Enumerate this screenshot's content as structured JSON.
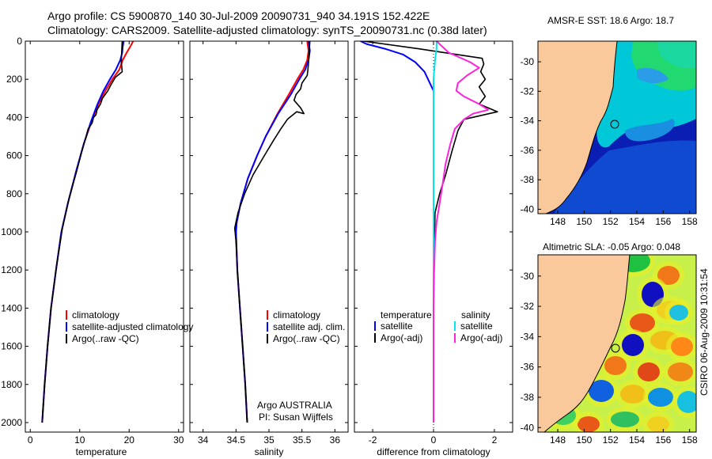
{
  "figure": {
    "title_line1": "Argo profile: CS 5900870_140 30-Jul-2009 20090731_940 34.191S 152.422E",
    "title_line2": "Climatology: CARS2009. Satellite-adjusted climatology: synTS_20090731.nc (0.38d later)",
    "stamp": "CSIRO 06-Aug-2009 10:31:54",
    "credit_line1": "Argo AUSTRALIA",
    "credit_line2": "PI: Susan Wijffels"
  },
  "colors": {
    "climatology": "#ff0000",
    "satellite": "#0000ff",
    "argo": "#000000",
    "sal_satellite": "#00e5ee",
    "sal_argo": "#ff22dd",
    "land": "#f9c89b"
  },
  "chart_data": [
    {
      "type": "line",
      "xlabel": "temperature",
      "ylabel": "",
      "xlim": [
        -1,
        31
      ],
      "ylim": [
        2050,
        0
      ],
      "xticks": [
        "0",
        "10",
        "20",
        "30"
      ],
      "yticks": [
        "0",
        "200",
        "400",
        "600",
        "800",
        "1000",
        "1200",
        "1400",
        "1600",
        "1800",
        "2000"
      ],
      "legend": [
        "climatology",
        "satellite-adjusted climatology",
        "Argo(..raw -QC)"
      ],
      "series": [
        {
          "name": "climatology",
          "color": "#ff0000",
          "points": [
            [
              20.8,
              0
            ],
            [
              20.2,
              30
            ],
            [
              19.5,
              60
            ],
            [
              18.7,
              100
            ],
            [
              18,
              150
            ],
            [
              16.6,
              200
            ],
            [
              15.2,
              260
            ],
            [
              13.8,
              330
            ],
            [
              12.4,
              420
            ],
            [
              10.8,
              540
            ],
            [
              9.3,
              680
            ],
            [
              7.6,
              850
            ],
            [
              6.3,
              1000
            ],
            [
              5.2,
              1200
            ],
            [
              4.2,
              1400
            ],
            [
              3.5,
              1600
            ],
            [
              2.9,
              1800
            ],
            [
              2.4,
              2000
            ]
          ]
        },
        {
          "name": "satellite-adjusted climatology",
          "color": "#0000ff",
          "points": [
            [
              18.9,
              0
            ],
            [
              18.7,
              30
            ],
            [
              18.6,
              60
            ],
            [
              18.2,
              100
            ],
            [
              17.3,
              150
            ],
            [
              16.1,
              200
            ],
            [
              14.8,
              260
            ],
            [
              13.6,
              330
            ],
            [
              12.3,
              420
            ],
            [
              10.8,
              540
            ],
            [
              9.3,
              680
            ],
            [
              7.6,
              850
            ],
            [
              6.3,
              1000
            ],
            [
              5.2,
              1200
            ],
            [
              4.2,
              1400
            ],
            [
              3.5,
              1600
            ],
            [
              2.9,
              1800
            ],
            [
              2.4,
              2000
            ]
          ]
        },
        {
          "name": "Argo(..raw -QC)",
          "color": "#000000",
          "points": [
            [
              18.6,
              0
            ],
            [
              18.5,
              50
            ],
            [
              18.4,
              110
            ],
            [
              18.6,
              160
            ],
            [
              17.2,
              190
            ],
            [
              16.3,
              230
            ],
            [
              15.7,
              260
            ],
            [
              14.6,
              300
            ],
            [
              14.2,
              330
            ],
            [
              13.5,
              360
            ],
            [
              13.3,
              385
            ],
            [
              12.8,
              400
            ],
            [
              12.5,
              430
            ],
            [
              11.7,
              460
            ],
            [
              11.3,
              500
            ],
            [
              10.4,
              580
            ],
            [
              9.4,
              680
            ],
            [
              7.9,
              820
            ],
            [
              6.5,
              980
            ],
            [
              5.3,
              1180
            ],
            [
              4.2,
              1400
            ],
            [
              3.5,
              1600
            ],
            [
              2.9,
              1800
            ],
            [
              2.4,
              2000
            ]
          ]
        }
      ]
    },
    {
      "type": "line",
      "xlabel": "salinity",
      "xlim": [
        33.8,
        36.2
      ],
      "ylim": [
        2050,
        0
      ],
      "xticks": [
        "34",
        "34.5",
        "35",
        "35.5",
        "36"
      ],
      "legend": [
        "climatology",
        "satellite adj. clim.",
        "Argo(..raw -QC)"
      ],
      "series": [
        {
          "name": "climatology",
          "color": "#ff0000",
          "points": [
            [
              35.58,
              0
            ],
            [
              35.6,
              50
            ],
            [
              35.58,
              100
            ],
            [
              35.52,
              150
            ],
            [
              35.43,
              200
            ],
            [
              35.3,
              280
            ],
            [
              35.13,
              380
            ],
            [
              34.95,
              500
            ],
            [
              34.82,
              600
            ],
            [
              34.68,
              720
            ],
            [
              34.57,
              850
            ],
            [
              34.51,
              950
            ],
            [
              34.5,
              1000
            ],
            [
              34.52,
              1200
            ],
            [
              34.56,
              1400
            ],
            [
              34.6,
              1600
            ],
            [
              34.64,
              1800
            ],
            [
              34.67,
              2000
            ]
          ]
        },
        {
          "name": "satellite adj. clim.",
          "color": "#0000ff",
          "points": [
            [
              35.6,
              0
            ],
            [
              35.62,
              50
            ],
            [
              35.6,
              100
            ],
            [
              35.55,
              150
            ],
            [
              35.46,
              200
            ],
            [
              35.33,
              280
            ],
            [
              35.14,
              380
            ],
            [
              34.95,
              500
            ],
            [
              34.82,
              600
            ],
            [
              34.68,
              720
            ],
            [
              34.57,
              850
            ],
            [
              34.51,
              950
            ],
            [
              34.5,
              1000
            ],
            [
              34.52,
              1200
            ],
            [
              34.56,
              1400
            ],
            [
              34.6,
              1600
            ],
            [
              34.64,
              1800
            ],
            [
              34.67,
              2000
            ]
          ]
        },
        {
          "name": "Argo(..raw -QC)",
          "color": "#000000",
          "points": [
            [
              35.62,
              0
            ],
            [
              35.61,
              60
            ],
            [
              35.6,
              110
            ],
            [
              35.59,
              150
            ],
            [
              35.58,
              180
            ],
            [
              35.5,
              220
            ],
            [
              35.48,
              250
            ],
            [
              35.41,
              280
            ],
            [
              35.38,
              310
            ],
            [
              35.48,
              350
            ],
            [
              35.53,
              380
            ],
            [
              35.42,
              370
            ],
            [
              35.28,
              410
            ],
            [
              35.18,
              460
            ],
            [
              35.07,
              520
            ],
            [
              34.93,
              600
            ],
            [
              34.76,
              700
            ],
            [
              34.63,
              800
            ],
            [
              34.53,
              900
            ],
            [
              34.48,
              980
            ],
            [
              34.5,
              1050
            ],
            [
              34.52,
              1200
            ],
            [
              34.56,
              1400
            ],
            [
              34.6,
              1600
            ],
            [
              34.64,
              1800
            ],
            [
              34.67,
              2000
            ]
          ]
        }
      ]
    },
    {
      "type": "line",
      "xlabel": "difference from climatology",
      "xlim": [
        -2.6,
        2.6
      ],
      "ylim": [
        2050,
        0
      ],
      "xticks": [
        "-2",
        "0",
        "2"
      ],
      "legend_headers": [
        "temperature",
        "salinity"
      ],
      "legend": [
        "satellite",
        "Argo(-adj)",
        "satellite",
        "Argo(-adj)"
      ],
      "series": [
        {
          "name": "temperature satellite",
          "color": "#0000ff",
          "points": [
            [
              -2.4,
              0
            ],
            [
              -2.2,
              15
            ],
            [
              -1.6,
              40
            ],
            [
              -1.0,
              70
            ],
            [
              -0.6,
              110
            ],
            [
              -0.3,
              160
            ],
            [
              -0.15,
              210
            ],
            [
              0,
              260
            ],
            [
              0,
              1000
            ],
            [
              0,
              2000
            ]
          ]
        },
        {
          "name": "temperature Argo(-adj)",
          "color": "#000000",
          "points": [
            [
              -2.3,
              0
            ],
            [
              -0.5,
              40
            ],
            [
              1.6,
              90
            ],
            [
              1.65,
              120
            ],
            [
              1.55,
              160
            ],
            [
              1.7,
              200
            ],
            [
              1.5,
              240
            ],
            [
              1.7,
              290
            ],
            [
              1.5,
              330
            ],
            [
              2.1,
              370
            ],
            [
              1.0,
              410
            ],
            [
              0.8,
              470
            ],
            [
              0.6,
              580
            ],
            [
              0.4,
              700
            ],
            [
              0.2,
              800
            ],
            [
              0.05,
              900
            ],
            [
              0.02,
              1100
            ],
            [
              0.0,
              1400
            ],
            [
              0.0,
              2000
            ]
          ]
        },
        {
          "name": "salinity satellite",
          "color": "#00e5ee",
          "points": [
            [
              0.1,
              0
            ],
            [
              0.1,
              40
            ],
            [
              0.05,
              100
            ],
            [
              0,
              200
            ],
            [
              0,
              400
            ],
            [
              0,
              1000
            ],
            [
              0,
              2000
            ]
          ]
        },
        {
          "name": "salinity Argo(-adj)",
          "color": "#ff22dd",
          "points": [
            [
              0.1,
              0
            ],
            [
              0.5,
              60
            ],
            [
              1.2,
              110
            ],
            [
              1.5,
              140
            ],
            [
              1.1,
              180
            ],
            [
              0.8,
              220
            ],
            [
              0.75,
              260
            ],
            [
              1.0,
              290
            ],
            [
              1.5,
              330
            ],
            [
              1.8,
              360
            ],
            [
              1.3,
              380
            ],
            [
              1.0,
              410
            ],
            [
              0.7,
              460
            ],
            [
              0.55,
              540
            ],
            [
              0.4,
              640
            ],
            [
              0.3,
              750
            ],
            [
              0.2,
              850
            ],
            [
              0.1,
              950
            ],
            [
              0.05,
              1050
            ],
            [
              0.02,
              1200
            ],
            [
              0,
              1400
            ],
            [
              0,
              2000
            ]
          ]
        }
      ]
    },
    {
      "type": "heatmap",
      "title": "AMSR-E SST: 18.6 Argo: 18.7",
      "xticks": [
        "148",
        "150",
        "152",
        "154",
        "156",
        "158"
      ],
      "yticks": [
        "-30",
        "-32",
        "-34",
        "-36",
        "-38",
        "-40"
      ],
      "xlim": [
        146.5,
        158.5
      ],
      "ylim": [
        -40.3,
        -28.6
      ],
      "marker": {
        "lon": 152.42,
        "lat": -34.19
      }
    },
    {
      "type": "heatmap",
      "title": "Altimetric SLA: -0.05 Argo: 0.048",
      "xticks": [
        "148",
        "150",
        "152",
        "154",
        "156",
        "158"
      ],
      "yticks": [
        "-30",
        "-32",
        "-34",
        "-36",
        "-38",
        "-40"
      ],
      "xlim": [
        146.5,
        158.5
      ],
      "ylim": [
        -40.3,
        -28.6
      ],
      "marker": {
        "lon": 152.42,
        "lat": -34.19
      }
    }
  ]
}
